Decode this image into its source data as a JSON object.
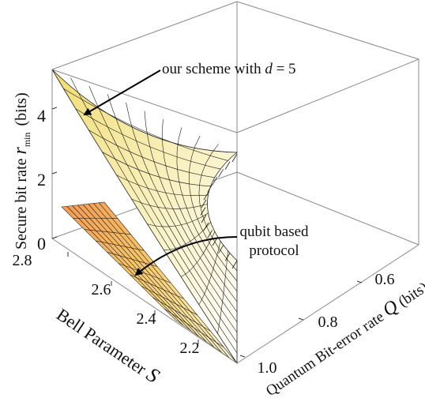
{
  "chart_data": {
    "type": "surface",
    "axes": {
      "z": {
        "label_prefix": "Secure bit rate ",
        "label_symbol": "r",
        "label_subscript": "min",
        "label_suffix": "(bits)",
        "ticks": [
          "0",
          "2",
          "4"
        ],
        "range": [
          0,
          5
        ]
      },
      "s": {
        "label": "Bell Parameter ",
        "label_symbol": "S",
        "ticks": [
          "2.8",
          "2.6",
          "2.4",
          "2.2"
        ],
        "range": [
          2.0,
          2.9
        ]
      },
      "q": {
        "label": "Quantum Bit-error rate ",
        "label_symbol": "Q",
        "label_unit": " (bits)",
        "ticks": [
          "0.6",
          "0.8",
          "1.0"
        ],
        "range": [
          0.5,
          1.0
        ]
      }
    },
    "surfaces": [
      {
        "description_visible": false,
        "annotation": "our scheme with",
        "annotation_var": "d",
        "annotation_val": " = 5",
        "color": "#f3e26e",
        "z_at_corners": {
          "S_max_Q_min": 5.0,
          "S_min_Q_max": 0.0
        }
      },
      {
        "annotation_line1": "qubit based",
        "annotation_line2": "protocol",
        "color": "#f2a05a",
        "z_at_corners": {
          "S_max_Q_min": 1.0,
          "S_min_Q_max": 0.0
        }
      }
    ],
    "legend": "none",
    "grid": false,
    "colors": {
      "box": "#8a8a8a",
      "mesh": "#1a1a1a",
      "surface_light": "#fbf6d8",
      "surface_mid": "#f4e78a",
      "surface_warm": "#f2a35c"
    }
  }
}
